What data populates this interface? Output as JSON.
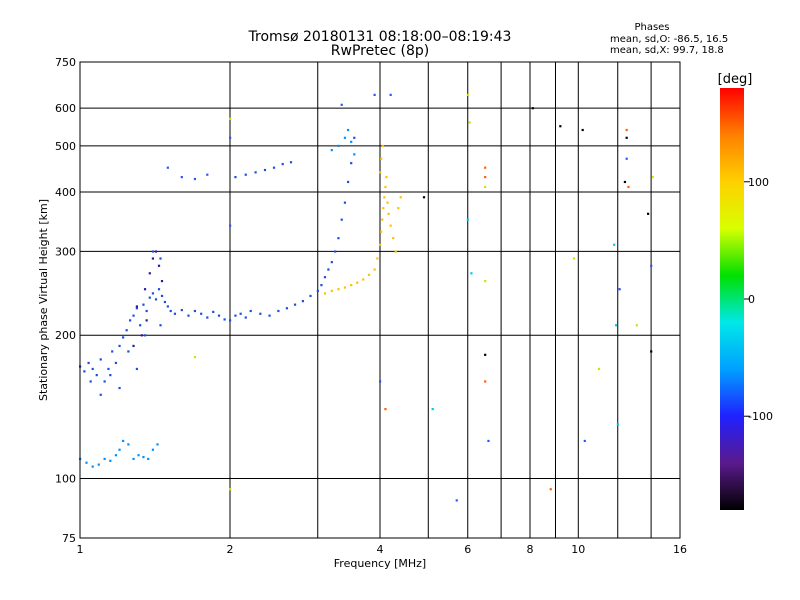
{
  "chart_data": {
    "type": "scatter",
    "title": "Tromsø 20180131 08:18:00–08:19:43",
    "subtitle": "RwPretec (8p)",
    "xlabel": "Frequency [MHz]",
    "ylabel": "Stationary phase Virtual Height [km]",
    "x_scale": "log",
    "y_scale": "log",
    "xlim": [
      1,
      16
    ],
    "ylim": [
      75,
      750
    ],
    "x_ticks": [
      1,
      2,
      4,
      6,
      8,
      10,
      16
    ],
    "x_tick_labels": [
      "1",
      "2",
      "4",
      "6",
      "8",
      "10",
      "16"
    ],
    "y_ticks": [
      75,
      100,
      200,
      300,
      400,
      500,
      600,
      750
    ],
    "y_tick_labels": [
      "75",
      "100",
      "200",
      "300",
      "400",
      "500",
      "600",
      "750"
    ],
    "grid": true,
    "phases_block": {
      "heading": "Phases",
      "line_o": "mean, sd,O: -86.5, 16.5",
      "line_x": "mean, sd,X:  99.7, 18.8"
    },
    "colorbar": {
      "label": "[deg]",
      "range": [
        -180,
        180
      ],
      "ticks": [
        100,
        0,
        -100
      ],
      "tick_labels": [
        "100",
        "0",
        "-100"
      ],
      "colors": [
        "#000000",
        "#5a1a8c",
        "#2020ff",
        "#00a0ff",
        "#00e8e8",
        "#00e000",
        "#d8ff00",
        "#ffd000",
        "#ff8000",
        "#ff0000"
      ]
    },
    "series": [
      {
        "color": "#1a4fe0",
        "points": [
          [
            1.0,
            172
          ],
          [
            1.02,
            168
          ],
          [
            1.04,
            175
          ],
          [
            1.06,
            170
          ],
          [
            1.08,
            165
          ],
          [
            1.1,
            178
          ],
          [
            1.12,
            160
          ],
          [
            1.14,
            170
          ],
          [
            1.16,
            185
          ],
          [
            1.18,
            175
          ],
          [
            1.2,
            190
          ],
          [
            1.22,
            198
          ],
          [
            1.24,
            205
          ],
          [
            1.26,
            215
          ],
          [
            1.28,
            220
          ],
          [
            1.3,
            228
          ],
          [
            1.32,
            210
          ],
          [
            1.34,
            232
          ],
          [
            1.36,
            225
          ],
          [
            1.38,
            240
          ],
          [
            1.4,
            245
          ],
          [
            1.42,
            238
          ],
          [
            1.44,
            250
          ],
          [
            1.46,
            242
          ],
          [
            1.48,
            235
          ],
          [
            1.5,
            230
          ],
          [
            1.52,
            225
          ],
          [
            1.55,
            222
          ],
          [
            1.6,
            226
          ],
          [
            1.65,
            220
          ],
          [
            1.7,
            225
          ],
          [
            1.75,
            222
          ],
          [
            1.8,
            218
          ],
          [
            1.85,
            224
          ],
          [
            1.9,
            220
          ],
          [
            1.95,
            216
          ],
          [
            2.0,
            215
          ],
          [
            2.05,
            220
          ],
          [
            2.1,
            222
          ],
          [
            2.15,
            218
          ],
          [
            2.2,
            225
          ],
          [
            2.3,
            222
          ],
          [
            2.4,
            220
          ],
          [
            2.5,
            225
          ],
          [
            2.6,
            228
          ],
          [
            2.7,
            232
          ],
          [
            2.8,
            236
          ],
          [
            2.9,
            242
          ],
          [
            3.0,
            248
          ],
          [
            3.05,
            255
          ],
          [
            3.1,
            265
          ],
          [
            3.15,
            275
          ],
          [
            3.2,
            285
          ],
          [
            3.25,
            300
          ],
          [
            3.3,
            320
          ],
          [
            3.35,
            350
          ],
          [
            3.4,
            380
          ],
          [
            3.45,
            420
          ],
          [
            3.5,
            460
          ],
          [
            3.55,
            520
          ],
          [
            1.25,
            185
          ],
          [
            1.35,
            200
          ],
          [
            1.45,
            210
          ],
          [
            1.15,
            165
          ],
          [
            1.3,
            170
          ],
          [
            1.05,
            160
          ],
          [
            1.1,
            150
          ],
          [
            1.2,
            155
          ],
          [
            1.4,
            300
          ],
          [
            1.45,
            290
          ],
          [
            2.05,
            430
          ],
          [
            2.15,
            435
          ],
          [
            2.25,
            440
          ],
          [
            2.35,
            445
          ],
          [
            2.45,
            450
          ],
          [
            2.55,
            458
          ],
          [
            2.65,
            462
          ]
        ]
      },
      {
        "color": "#2a1a9a",
        "points": [
          [
            1.3,
            230
          ],
          [
            1.35,
            250
          ],
          [
            1.38,
            270
          ],
          [
            1.4,
            290
          ],
          [
            1.42,
            300
          ],
          [
            1.44,
            280
          ],
          [
            1.46,
            260
          ],
          [
            1.36,
            215
          ],
          [
            1.33,
            200
          ],
          [
            1.28,
            190
          ]
        ]
      },
      {
        "color": "#0090ff",
        "points": [
          [
            1.0,
            110
          ],
          [
            1.03,
            108
          ],
          [
            1.06,
            106
          ],
          [
            1.09,
            107
          ],
          [
            1.12,
            110
          ],
          [
            1.15,
            109
          ],
          [
            1.18,
            112
          ],
          [
            1.2,
            115
          ],
          [
            1.22,
            120
          ],
          [
            1.25,
            118
          ],
          [
            1.28,
            110
          ],
          [
            1.31,
            112
          ],
          [
            1.34,
            111
          ],
          [
            1.37,
            110
          ],
          [
            1.4,
            115
          ],
          [
            1.43,
            118
          ],
          [
            3.2,
            490
          ],
          [
            3.3,
            500
          ],
          [
            3.4,
            520
          ],
          [
            3.45,
            540
          ],
          [
            3.5,
            510
          ],
          [
            3.55,
            480
          ]
        ]
      },
      {
        "color": "#ffc000",
        "points": [
          [
            3.1,
            245
          ],
          [
            3.2,
            248
          ],
          [
            3.3,
            250
          ],
          [
            3.4,
            252
          ],
          [
            3.5,
            255
          ],
          [
            3.6,
            258
          ],
          [
            3.7,
            262
          ],
          [
            3.8,
            268
          ],
          [
            3.9,
            275
          ],
          [
            3.95,
            290
          ],
          [
            4.0,
            310
          ],
          [
            4.02,
            330
          ],
          [
            4.04,
            350
          ],
          [
            4.06,
            370
          ],
          [
            4.08,
            390
          ],
          [
            4.1,
            410
          ],
          [
            4.12,
            430
          ],
          [
            4.14,
            380
          ],
          [
            4.16,
            360
          ],
          [
            4.2,
            340
          ],
          [
            4.25,
            320
          ],
          [
            4.3,
            300
          ],
          [
            4.35,
            370
          ],
          [
            4.4,
            390
          ],
          [
            4.0,
            440
          ],
          [
            4.02,
            470
          ],
          [
            4.05,
            500
          ]
        ]
      },
      {
        "color": "#000000",
        "points": [
          [
            4.9,
            390
          ],
          [
            6.5,
            182
          ],
          [
            8.1,
            600
          ],
          [
            9.2,
            550
          ],
          [
            10.2,
            540
          ],
          [
            12.5,
            520
          ],
          [
            12.4,
            420
          ],
          [
            13.8,
            360
          ],
          [
            14.0,
            185
          ]
        ]
      },
      {
        "color": "#00c8e8",
        "points": [
          [
            6.0,
            350
          ],
          [
            6.1,
            270
          ],
          [
            11.8,
            310
          ],
          [
            11.9,
            210
          ],
          [
            12.0,
            130
          ],
          [
            5.1,
            140
          ]
        ]
      },
      {
        "color": "#ff6000",
        "points": [
          [
            6.5,
            450
          ],
          [
            6.5,
            430
          ],
          [
            6.5,
            160
          ],
          [
            12.5,
            540
          ],
          [
            12.6,
            410
          ],
          [
            8.8,
            95
          ],
          [
            4.1,
            140
          ]
        ]
      },
      {
        "color": "#d8e000",
        "points": [
          [
            6.5,
            410
          ],
          [
            6.5,
            260
          ],
          [
            6.0,
            640
          ],
          [
            6.05,
            560
          ],
          [
            9.8,
            290
          ],
          [
            11.0,
            170
          ],
          [
            13.1,
            210
          ],
          [
            14.1,
            430
          ],
          [
            1.7,
            180
          ],
          [
            2.0,
            95
          ],
          [
            2.0,
            570
          ]
        ]
      },
      {
        "color": "#3050ff",
        "points": [
          [
            1.6,
            430
          ],
          [
            1.7,
            426
          ],
          [
            1.8,
            435
          ],
          [
            3.35,
            610
          ],
          [
            3.9,
            640
          ],
          [
            5.7,
            90
          ],
          [
            4.0,
            160
          ],
          [
            6.6,
            120
          ],
          [
            10.3,
            120
          ],
          [
            12.1,
            250
          ],
          [
            12.5,
            470
          ],
          [
            14.0,
            280
          ],
          [
            1.5,
            450
          ],
          [
            2.0,
            520
          ],
          [
            2.0,
            340
          ],
          [
            4.2,
            640
          ]
        ]
      }
    ]
  }
}
